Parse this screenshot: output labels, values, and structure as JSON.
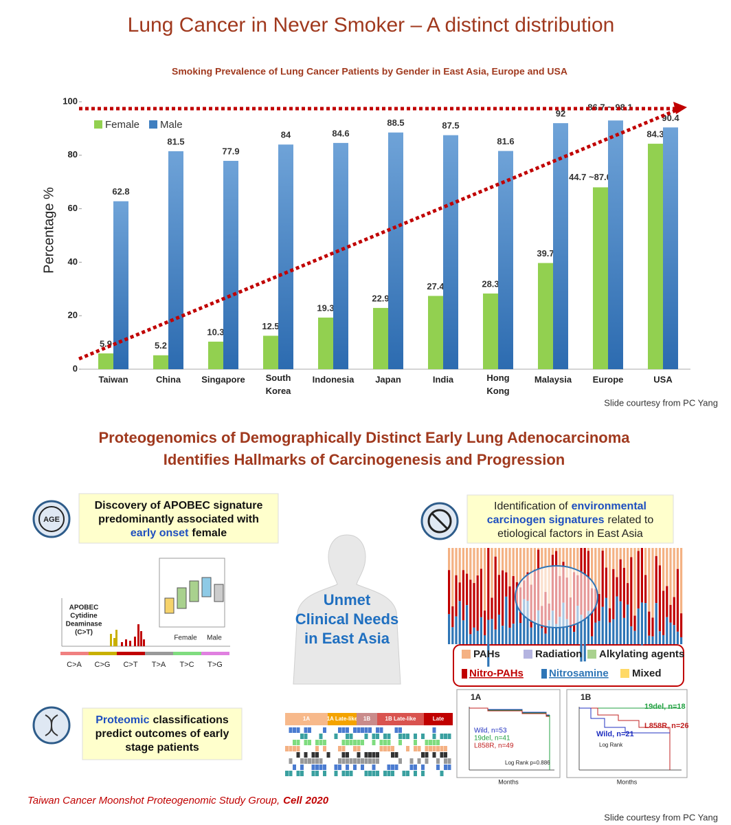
{
  "title": "Lung Cancer in Never Smoker – A distinct distribution",
  "chart_data": {
    "type": "bar",
    "title": "Smoking Prevalence of Lung Cancer Patients by Gender in East Asia, Europe and USA",
    "ylabel": "Percentage %",
    "categories": [
      "Taiwan",
      "China",
      "Singapore",
      "South Korea",
      "Indonesia",
      "Japan",
      "India",
      "Hong Kong",
      "Malaysia",
      "Europe",
      "USA"
    ],
    "series": [
      {
        "name": "Female",
        "color": "#92d050",
        "values": [
          5.9,
          5.2,
          10.3,
          12.5,
          19.3,
          22.9,
          27.4,
          28.3,
          39.7,
          68,
          84.3
        ]
      },
      {
        "name": "Male",
        "color": "#3f7fc0",
        "values": [
          62.8,
          81.5,
          77.9,
          84,
          84.6,
          88.5,
          87.5,
          81.6,
          92,
          93,
          90.4
        ]
      }
    ],
    "annotations": [
      {
        "text": "44.7 ~87.0",
        "category": "Europe",
        "series": "Female"
      },
      {
        "text": "86.7 ~ 98.1",
        "category": "Europe",
        "series": "Male"
      }
    ],
    "ylim": [
      0,
      100
    ],
    "yticks": [
      0,
      20,
      40,
      60,
      80,
      100
    ],
    "grid": false,
    "legend": "top-left"
  },
  "credit_top": "Slide courtesy from PC Yang",
  "study": {
    "heading": [
      "Proteogenomics of Demographically Distinct Early Lung Adenocarcinoma",
      "Identifies Hallmarks of Carcinogenesis and Progression"
    ],
    "apobec": {
      "icon": "AGE",
      "lines": [
        [
          {
            "text": "Discovery of APOBEC signature"
          }
        ],
        [
          {
            "text": "predominantly associated with"
          }
        ],
        [
          {
            "text": "early onset",
            "style": "blue"
          },
          {
            "text": "female"
          }
        ]
      ],
      "figure_label": [
        "APOBEC",
        "Cytidine",
        "Deaminase",
        "(C>T)"
      ],
      "mutation_types": [
        "C>A",
        "C>G",
        "C>T",
        "T>A",
        "T>C",
        "T>G"
      ],
      "groups": [
        "Female",
        "Male"
      ]
    },
    "environment": {
      "lines": [
        [
          {
            "text": "Identification of"
          },
          {
            "text": "environmental",
            "style": "blue"
          }
        ],
        [
          {
            "text": "carcinogen signatures",
            "style": "blue"
          },
          {
            "text": "related to"
          }
        ],
        [
          {
            "text": "etiological factors in East Asia"
          }
        ]
      ],
      "legend": [
        {
          "name": "PAHs",
          "color": "#f4b183"
        },
        {
          "name": "Radiation",
          "color": "#b4b4e0"
        },
        {
          "name": "Alkylating agents",
          "color": "#a9d18e"
        },
        {
          "name": "Nitro-PAHs",
          "color": "#c00000"
        },
        {
          "name": "Nitrosamine",
          "color": "#2e75b6"
        },
        {
          "name": "Mixed",
          "color": "#ffd966"
        }
      ]
    },
    "center": [
      "Unmet",
      "Clinical Needs",
      "in East Asia"
    ],
    "proteomic": {
      "lines": [
        [
          {
            "text": "Proteomic",
            "style": "blue"
          },
          {
            "text": "classifications"
          }
        ],
        [
          {
            "text": "predict outcomes of early"
          }
        ],
        [
          {
            "text": "stage patients"
          }
        ]
      ],
      "stages": [
        "1A",
        "1A Late-like",
        "1B",
        "1B Late-like",
        "Late"
      ]
    },
    "km_1a": {
      "title": "1A",
      "labels": [
        "Wild, n=53",
        "19del, n=41",
        "L858R, n=49"
      ],
      "note": "Log Rank p=0.886",
      "xlabel": "Months"
    },
    "km_1b": {
      "title": "1B",
      "labels": [
        "19del, n=18",
        "L858R, n=26",
        "Wild, n=21"
      ],
      "note": "Log Rank",
      "xlabel": "Months"
    },
    "citation": [
      {
        "text": "Taiwan Cancer Moonshot Proteogenomic Study Group,"
      },
      {
        "text": "Cell",
        "style": "bold"
      },
      {
        "text": "2020",
        "style": "bold"
      }
    ],
    "credit_bottom": "Slide courtesy from PC Yang"
  }
}
